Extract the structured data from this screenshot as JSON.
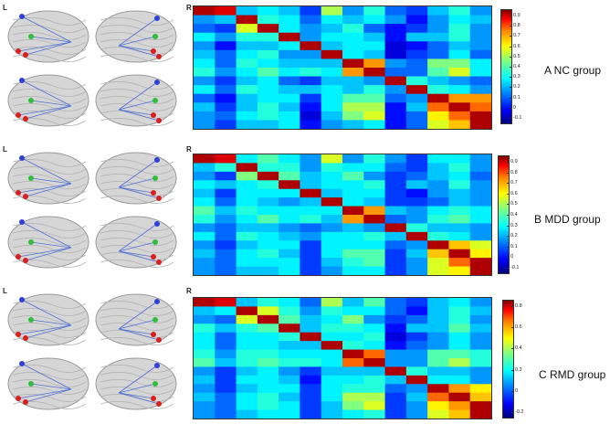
{
  "labels": {
    "left": "L",
    "right": "R"
  },
  "colormap": "jet",
  "colors": {
    "low": "#00007f",
    "mid": "#00ffff",
    "high": "#7f0000",
    "node_red": "#d9201e",
    "node_blue": "#2f3fd8",
    "node_green": "#2fbf3a",
    "edge": "#4f6fd6"
  },
  "panels": [
    {
      "title": "A NC group",
      "colorbar_ticks": [
        "0.9",
        "0.8",
        "0.7",
        "0.6",
        "0.5",
        "0.4",
        "0.3",
        "0.2",
        "0.1",
        "0",
        "-0.1"
      ],
      "matrix": [
        [
          0.95,
          0.9,
          0.25,
          0.3,
          0.25,
          0.1,
          0.5,
          0.2,
          0.35,
          0.15,
          0.1,
          0.25,
          0.35,
          0.2
        ],
        [
          0.2,
          0.25,
          0.95,
          0.35,
          0.3,
          0.15,
          0.3,
          0.25,
          0.3,
          0.2,
          0.05,
          0.2,
          0.3,
          0.25
        ],
        [
          0.15,
          0.1,
          0.55,
          0.95,
          0.3,
          0.2,
          0.25,
          0.35,
          0.15,
          0.05,
          0.1,
          0.2,
          0.35,
          0.2
        ],
        [
          0.3,
          0.2,
          0.35,
          0.35,
          0.95,
          0.2,
          0.3,
          0.3,
          0.25,
          0.05,
          0.25,
          0.25,
          0.35,
          0.2
        ],
        [
          0.2,
          0.05,
          0.25,
          0.25,
          0.3,
          0.95,
          0.25,
          0.3,
          0.3,
          0.0,
          0.05,
          0.15,
          0.25,
          0.2
        ],
        [
          0.25,
          0.15,
          0.3,
          0.35,
          0.2,
          0.2,
          0.95,
          0.3,
          0.25,
          0.0,
          0.1,
          0.15,
          0.3,
          0.15
        ],
        [
          0.3,
          0.15,
          0.35,
          0.3,
          0.25,
          0.25,
          0.25,
          0.95,
          0.7,
          0.2,
          0.15,
          0.45,
          0.45,
          0.3
        ],
        [
          0.35,
          0.2,
          0.3,
          0.4,
          0.3,
          0.35,
          0.3,
          0.7,
          0.95,
          0.15,
          0.15,
          0.4,
          0.55,
          0.3
        ],
        [
          0.2,
          0.1,
          0.25,
          0.3,
          0.15,
          0.1,
          0.25,
          0.25,
          0.2,
          0.95,
          0.35,
          0.25,
          0.2,
          0.15
        ],
        [
          0.3,
          0.15,
          0.35,
          0.3,
          0.25,
          0.25,
          0.3,
          0.25,
          0.35,
          0.2,
          0.95,
          0.35,
          0.3,
          0.2
        ],
        [
          0.15,
          0.05,
          0.25,
          0.3,
          0.3,
          0.1,
          0.3,
          0.4,
          0.4,
          0.15,
          0.2,
          0.95,
          0.7,
          0.7
        ],
        [
          0.25,
          0.1,
          0.25,
          0.35,
          0.25,
          0.05,
          0.3,
          0.5,
          0.5,
          0.05,
          0.25,
          0.75,
          0.95,
          0.75
        ],
        [
          0.2,
          0.15,
          0.3,
          0.35,
          0.3,
          0.0,
          0.25,
          0.45,
          0.55,
          0.05,
          0.15,
          0.6,
          0.75,
          0.95
        ],
        [
          0.2,
          0.1,
          0.25,
          0.25,
          0.3,
          0.05,
          0.2,
          0.25,
          0.3,
          0.05,
          0.15,
          0.55,
          0.65,
          0.95
        ]
      ]
    },
    {
      "title": "B MDD group",
      "colorbar_ticks": [
        "0.9",
        "0.8",
        "0.7",
        "0.6",
        "0.5",
        "0.4",
        "0.3",
        "0.2",
        "0.1",
        "0",
        "-0.1"
      ],
      "matrix": [
        [
          0.95,
          0.9,
          0.3,
          0.4,
          0.3,
          0.2,
          0.55,
          0.2,
          0.35,
          0.2,
          0.1,
          0.3,
          0.3,
          0.2
        ],
        [
          0.25,
          0.35,
          0.95,
          0.35,
          0.35,
          0.2,
          0.35,
          0.3,
          0.3,
          0.15,
          0.1,
          0.25,
          0.35,
          0.2
        ],
        [
          0.2,
          0.1,
          0.45,
          0.95,
          0.4,
          0.25,
          0.3,
          0.4,
          0.2,
          0.1,
          0.15,
          0.25,
          0.3,
          0.15
        ],
        [
          0.3,
          0.25,
          0.3,
          0.35,
          0.95,
          0.25,
          0.3,
          0.3,
          0.35,
          0.1,
          0.25,
          0.2,
          0.35,
          0.2
        ],
        [
          0.25,
          0.1,
          0.3,
          0.3,
          0.3,
          0.95,
          0.25,
          0.3,
          0.3,
          0.1,
          0.05,
          0.2,
          0.25,
          0.2
        ],
        [
          0.3,
          0.15,
          0.3,
          0.25,
          0.2,
          0.25,
          0.95,
          0.3,
          0.25,
          0.1,
          0.1,
          0.15,
          0.25,
          0.2
        ],
        [
          0.4,
          0.25,
          0.35,
          0.3,
          0.3,
          0.3,
          0.3,
          0.95,
          0.7,
          0.25,
          0.2,
          0.3,
          0.35,
          0.3
        ],
        [
          0.35,
          0.2,
          0.3,
          0.4,
          0.3,
          0.35,
          0.25,
          0.7,
          0.95,
          0.15,
          0.2,
          0.35,
          0.4,
          0.3
        ],
        [
          0.2,
          0.15,
          0.25,
          0.25,
          0.2,
          0.15,
          0.2,
          0.25,
          0.2,
          0.95,
          0.35,
          0.25,
          0.25,
          0.2
        ],
        [
          0.3,
          0.15,
          0.35,
          0.3,
          0.25,
          0.2,
          0.3,
          0.3,
          0.35,
          0.25,
          0.95,
          0.35,
          0.3,
          0.2
        ],
        [
          0.2,
          0.1,
          0.25,
          0.3,
          0.3,
          0.1,
          0.3,
          0.3,
          0.3,
          0.15,
          0.2,
          0.95,
          0.65,
          0.55
        ],
        [
          0.25,
          0.15,
          0.3,
          0.35,
          0.25,
          0.1,
          0.3,
          0.4,
          0.4,
          0.1,
          0.25,
          0.65,
          0.95,
          0.6
        ],
        [
          0.2,
          0.15,
          0.3,
          0.3,
          0.3,
          0.1,
          0.25,
          0.35,
          0.4,
          0.1,
          0.2,
          0.55,
          0.75,
          0.95
        ],
        [
          0.2,
          0.15,
          0.25,
          0.25,
          0.3,
          0.1,
          0.2,
          0.3,
          0.3,
          0.1,
          0.2,
          0.55,
          0.6,
          0.95
        ]
      ]
    },
    {
      "title": "C RMD group",
      "colorbar_ticks": [
        "0.8",
        "0.6",
        "0.4",
        "0.2",
        "0",
        "-0.2"
      ],
      "matrix": [
        [
          0.95,
          0.9,
          0.25,
          0.35,
          0.3,
          0.15,
          0.5,
          0.25,
          0.4,
          0.15,
          0.1,
          0.25,
          0.3,
          0.2
        ],
        [
          0.25,
          0.3,
          0.95,
          0.55,
          0.35,
          0.2,
          0.35,
          0.3,
          0.3,
          0.15,
          0.05,
          0.25,
          0.35,
          0.25
        ],
        [
          0.2,
          0.15,
          0.55,
          0.95,
          0.4,
          0.25,
          0.3,
          0.45,
          0.2,
          0.1,
          0.15,
          0.25,
          0.35,
          0.2
        ],
        [
          0.35,
          0.25,
          0.35,
          0.4,
          0.95,
          0.25,
          0.35,
          0.35,
          0.3,
          0.05,
          0.25,
          0.25,
          0.4,
          0.25
        ],
        [
          0.3,
          0.15,
          0.3,
          0.3,
          0.35,
          0.95,
          0.3,
          0.3,
          0.35,
          0.0,
          0.1,
          0.2,
          0.3,
          0.2
        ],
        [
          0.3,
          0.15,
          0.3,
          0.3,
          0.25,
          0.25,
          0.95,
          0.35,
          0.3,
          0.05,
          0.15,
          0.2,
          0.3,
          0.2
        ],
        [
          0.35,
          0.2,
          0.35,
          0.35,
          0.3,
          0.3,
          0.3,
          0.95,
          0.75,
          0.2,
          0.2,
          0.4,
          0.4,
          0.35
        ],
        [
          0.4,
          0.25,
          0.35,
          0.4,
          0.35,
          0.35,
          0.3,
          0.75,
          0.95,
          0.2,
          0.2,
          0.4,
          0.5,
          0.35
        ],
        [
          0.2,
          0.1,
          0.25,
          0.3,
          0.2,
          0.1,
          0.25,
          0.25,
          0.25,
          0.95,
          0.35,
          0.25,
          0.25,
          0.2
        ],
        [
          0.25,
          0.1,
          0.3,
          0.3,
          0.25,
          0.05,
          0.3,
          0.3,
          0.35,
          0.25,
          0.95,
          0.3,
          0.3,
          0.2
        ],
        [
          0.2,
          0.1,
          0.25,
          0.3,
          0.3,
          0.1,
          0.3,
          0.35,
          0.35,
          0.15,
          0.2,
          0.95,
          0.7,
          0.6
        ],
        [
          0.25,
          0.15,
          0.3,
          0.35,
          0.25,
          0.1,
          0.3,
          0.5,
          0.5,
          0.1,
          0.25,
          0.75,
          0.95,
          0.65
        ],
        [
          0.2,
          0.15,
          0.3,
          0.35,
          0.3,
          0.1,
          0.25,
          0.45,
          0.55,
          0.1,
          0.2,
          0.6,
          0.7,
          0.95
        ],
        [
          0.2,
          0.15,
          0.25,
          0.3,
          0.3,
          0.1,
          0.25,
          0.3,
          0.35,
          0.1,
          0.2,
          0.55,
          0.65,
          0.95
        ]
      ]
    }
  ]
}
